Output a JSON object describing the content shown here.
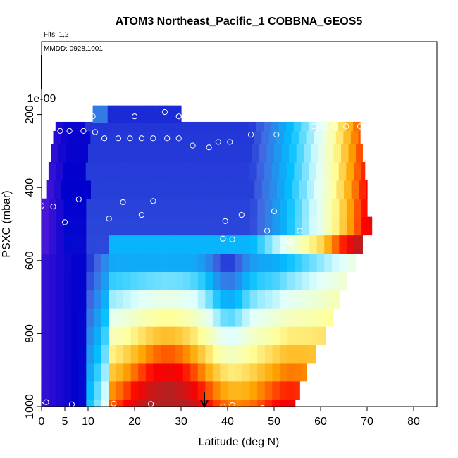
{
  "chart_data": {
    "type": "heatmap",
    "title": "ATOM3 Northeast_Pacific_1 COBBNA_GEOS5",
    "annotations": [
      "Flts: 1,2",
      "MMDD: 0928,1001"
    ],
    "xlabel": "Latitude (deg N)",
    "ylabel": "PSXC (mbar)",
    "xlim": [
      0,
      85
    ],
    "ylim": [
      1000,
      0
    ],
    "x_ticks": [
      0,
      5,
      10,
      20,
      30,
      40,
      50,
      60,
      70,
      80
    ],
    "y_ticks": [
      200,
      400,
      600,
      800,
      1000
    ],
    "y_special_label": "1e-09",
    "colormap": [
      "#8a2be2",
      "#0000cd",
      "#4169e1",
      "#00bfff",
      "#e0ffff",
      "#ffff99",
      "#ffa500",
      "#ff0000",
      "#b22222"
    ],
    "arrow_latitude": 35,
    "grid": false,
    "legend": "none"
  }
}
